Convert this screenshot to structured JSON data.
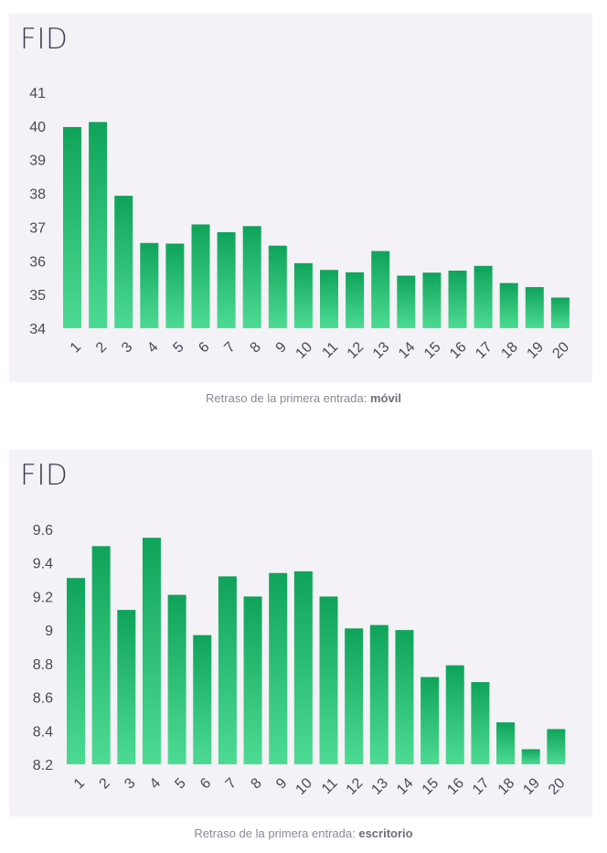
{
  "chart_data": [
    {
      "type": "bar",
      "title": "FID",
      "caption_prefix": "Retraso de la primera entrada:",
      "caption_emphasis": "móvil",
      "categories": [
        "1",
        "2",
        "3",
        "4",
        "5",
        "6",
        "7",
        "8",
        "9",
        "10",
        "11",
        "12",
        "13",
        "14",
        "15",
        "16",
        "17",
        "18",
        "19",
        "20"
      ],
      "values": [
        39.97,
        40.12,
        37.93,
        36.53,
        36.51,
        37.08,
        36.85,
        37.03,
        36.45,
        35.93,
        35.73,
        35.66,
        36.29,
        35.56,
        35.65,
        35.71,
        35.85,
        35.34,
        35.22,
        34.91
      ],
      "ylim": [
        34,
        41
      ],
      "yticks": [
        "34",
        "35",
        "36",
        "37",
        "38",
        "39",
        "40",
        "41"
      ],
      "ytick_values": [
        34,
        35,
        36,
        37,
        38,
        39,
        40,
        41
      ],
      "grid": false,
      "bar_color_top": "#0fa35a",
      "bar_color_bottom": "#4ddb93"
    },
    {
      "type": "bar",
      "title": "FID",
      "caption_prefix": "Retraso de la primera entrada:",
      "caption_emphasis": "escritorio",
      "categories": [
        "1",
        "2",
        "3",
        "4",
        "5",
        "6",
        "7",
        "8",
        "9",
        "10",
        "11",
        "12",
        "13",
        "14",
        "15",
        "16",
        "17",
        "18",
        "19",
        "20"
      ],
      "values": [
        9.31,
        9.5,
        9.12,
        9.55,
        9.21,
        8.97,
        9.32,
        9.2,
        9.34,
        9.35,
        9.2,
        9.01,
        9.03,
        9.0,
        8.72,
        8.79,
        8.69,
        8.45,
        8.29,
        8.41
      ],
      "ylim": [
        8.2,
        9.6
      ],
      "yticks": [
        "8.2",
        "8.4",
        "8.6",
        "8.8",
        "9",
        "9.2",
        "9.4",
        "9.6"
      ],
      "ytick_values": [
        8.2,
        8.4,
        8.6,
        8.8,
        9.0,
        9.2,
        9.4,
        9.6
      ],
      "grid": false,
      "bar_color_top": "#0fa35a",
      "bar_color_bottom": "#4ddb93"
    }
  ]
}
